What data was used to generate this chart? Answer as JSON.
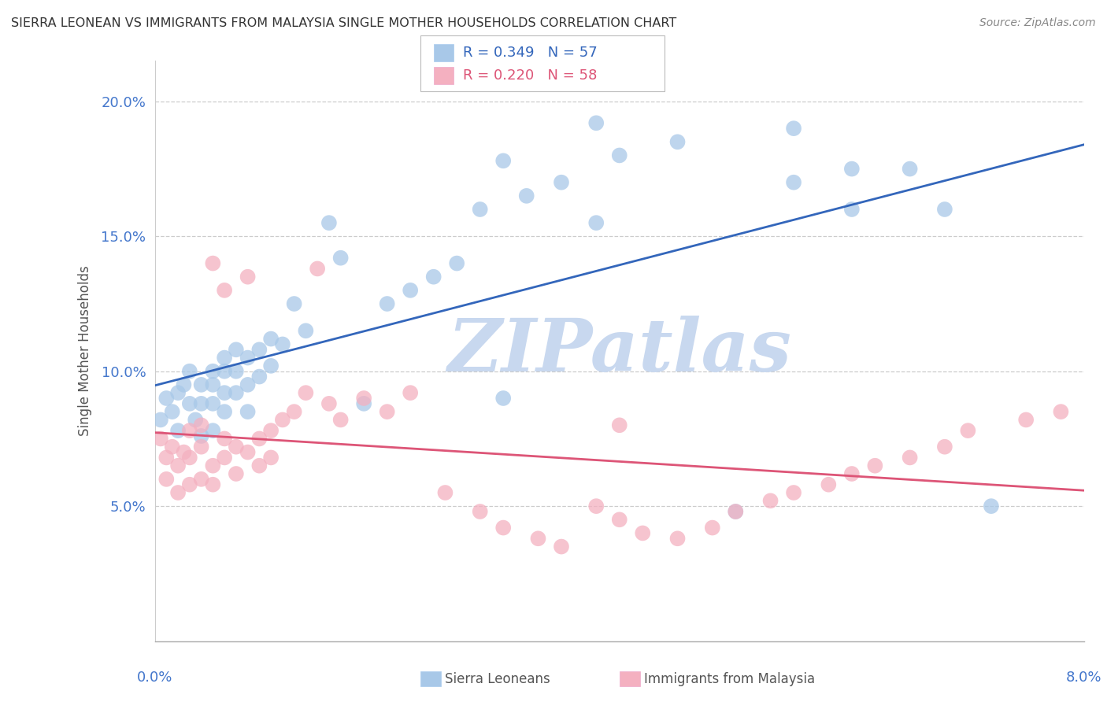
{
  "title": "SIERRA LEONEAN VS IMMIGRANTS FROM MALAYSIA SINGLE MOTHER HOUSEHOLDS CORRELATION CHART",
  "source": "Source: ZipAtlas.com",
  "ylabel": "Single Mother Households",
  "xlim": [
    0.0,
    0.08
  ],
  "ylim": [
    0.0,
    0.215
  ],
  "yticks": [
    0.05,
    0.1,
    0.15,
    0.2
  ],
  "ytick_labels": [
    "5.0%",
    "10.0%",
    "15.0%",
    "20.0%"
  ],
  "xtick_labels": [
    "0.0%",
    "8.0%"
  ],
  "legend_r1": "R = 0.349",
  "legend_n1": "N = 57",
  "legend_r2": "R = 0.220",
  "legend_n2": "N = 58",
  "blue_color": "#a8c8e8",
  "pink_color": "#f4b0c0",
  "blue_line_color": "#3366bb",
  "pink_line_color": "#dd5577",
  "watermark_color": "#c8d8ef",
  "background_color": "#ffffff",
  "sierra_x": [
    0.0005,
    0.001,
    0.0015,
    0.002,
    0.002,
    0.0025,
    0.003,
    0.003,
    0.0035,
    0.004,
    0.004,
    0.004,
    0.005,
    0.005,
    0.005,
    0.005,
    0.006,
    0.006,
    0.006,
    0.006,
    0.007,
    0.007,
    0.007,
    0.008,
    0.008,
    0.008,
    0.009,
    0.009,
    0.01,
    0.01,
    0.011,
    0.012,
    0.013,
    0.015,
    0.016,
    0.018,
    0.02,
    0.022,
    0.024,
    0.026,
    0.028,
    0.03,
    0.032,
    0.035,
    0.038,
    0.04,
    0.045,
    0.05,
    0.055,
    0.06,
    0.03,
    0.038,
    0.055,
    0.06,
    0.065,
    0.068,
    0.072
  ],
  "sierra_y": [
    0.082,
    0.09,
    0.085,
    0.092,
    0.078,
    0.095,
    0.088,
    0.1,
    0.082,
    0.095,
    0.088,
    0.076,
    0.095,
    0.088,
    0.1,
    0.078,
    0.1,
    0.092,
    0.105,
    0.085,
    0.1,
    0.092,
    0.108,
    0.105,
    0.095,
    0.085,
    0.108,
    0.098,
    0.112,
    0.102,
    0.11,
    0.125,
    0.115,
    0.155,
    0.142,
    0.088,
    0.125,
    0.13,
    0.135,
    0.14,
    0.16,
    0.09,
    0.165,
    0.17,
    0.155,
    0.18,
    0.185,
    0.048,
    0.19,
    0.175,
    0.178,
    0.192,
    0.17,
    0.16,
    0.175,
    0.16,
    0.05
  ],
  "malaysia_x": [
    0.0005,
    0.001,
    0.001,
    0.0015,
    0.002,
    0.002,
    0.0025,
    0.003,
    0.003,
    0.003,
    0.004,
    0.004,
    0.004,
    0.005,
    0.005,
    0.005,
    0.006,
    0.006,
    0.006,
    0.007,
    0.007,
    0.008,
    0.008,
    0.009,
    0.009,
    0.01,
    0.01,
    0.011,
    0.012,
    0.013,
    0.014,
    0.015,
    0.016,
    0.018,
    0.02,
    0.022,
    0.025,
    0.028,
    0.03,
    0.033,
    0.035,
    0.038,
    0.04,
    0.042,
    0.045,
    0.048,
    0.05,
    0.053,
    0.04,
    0.055,
    0.058,
    0.06,
    0.062,
    0.065,
    0.068,
    0.07,
    0.075,
    0.078
  ],
  "malaysia_y": [
    0.075,
    0.068,
    0.06,
    0.072,
    0.065,
    0.055,
    0.07,
    0.068,
    0.058,
    0.078,
    0.06,
    0.072,
    0.08,
    0.14,
    0.058,
    0.065,
    0.13,
    0.068,
    0.075,
    0.072,
    0.062,
    0.135,
    0.07,
    0.075,
    0.065,
    0.078,
    0.068,
    0.082,
    0.085,
    0.092,
    0.138,
    0.088,
    0.082,
    0.09,
    0.085,
    0.092,
    0.055,
    0.048,
    0.042,
    0.038,
    0.035,
    0.05,
    0.045,
    0.04,
    0.038,
    0.042,
    0.048,
    0.052,
    0.08,
    0.055,
    0.058,
    0.062,
    0.065,
    0.068,
    0.072,
    0.078,
    0.082,
    0.085
  ]
}
